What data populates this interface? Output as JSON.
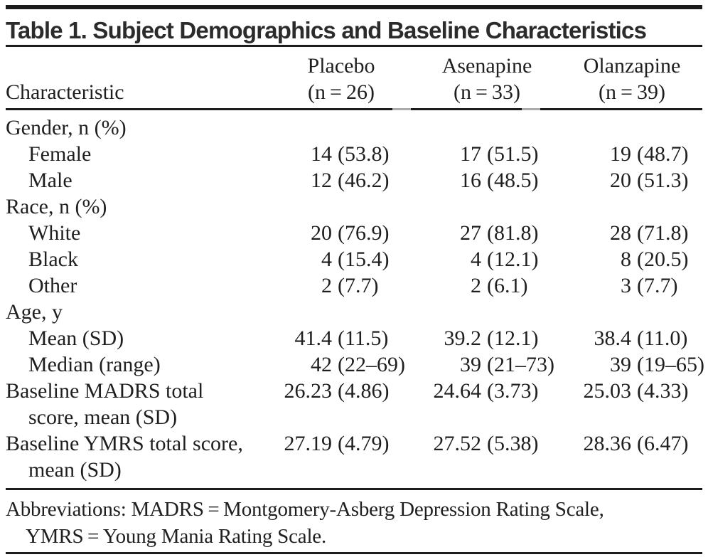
{
  "title": "Table 1. Subject Demographics and Baseline Characteristics",
  "columns": {
    "characteristic_label": "Characteristic",
    "groups": [
      {
        "name": "Placebo",
        "n": "(n = 26)"
      },
      {
        "name": "Asenapine",
        "n": "(n = 33)"
      },
      {
        "name": "Olanzapine",
        "n": "(n = 39)"
      }
    ]
  },
  "rows": [
    {
      "label": "Gender, n (%)",
      "indent": false
    },
    {
      "label": "Female",
      "indent": true,
      "values": [
        {
          "num": "14",
          "paren": "(53.8)"
        },
        {
          "num": "17",
          "paren": "(51.5)"
        },
        {
          "num": "19",
          "paren": "(48.7)"
        }
      ]
    },
    {
      "label": "Male",
      "indent": true,
      "values": [
        {
          "num": "12",
          "paren": "(46.2)"
        },
        {
          "num": "16",
          "paren": "(48.5)"
        },
        {
          "num": "20",
          "paren": "(51.3)"
        }
      ]
    },
    {
      "label": "Race, n (%)",
      "indent": false
    },
    {
      "label": "White",
      "indent": true,
      "values": [
        {
          "num": "20",
          "paren": "(76.9)"
        },
        {
          "num": "27",
          "paren": "(81.8)"
        },
        {
          "num": "28",
          "paren": "(71.8)"
        }
      ]
    },
    {
      "label": "Black",
      "indent": true,
      "values": [
        {
          "num": "4",
          "paren": "(15.4)"
        },
        {
          "num": "4",
          "paren": "(12.1)"
        },
        {
          "num": "8",
          "paren": "(20.5)"
        }
      ]
    },
    {
      "label": "Other",
      "indent": true,
      "values": [
        {
          "num": "2",
          "paren": "(7.7)"
        },
        {
          "num": "2",
          "paren": "(6.1)"
        },
        {
          "num": "3",
          "paren": "(7.7)"
        }
      ]
    },
    {
      "label": "Age, y",
      "indent": false
    },
    {
      "label": "Mean (SD)",
      "indent": true,
      "values": [
        {
          "num": "41.4",
          "paren": "(11.5)"
        },
        {
          "num": "39.2",
          "paren": "(12.1)"
        },
        {
          "num": "38.4",
          "paren": "(11.0)"
        }
      ]
    },
    {
      "label": "Median (range)",
      "indent": true,
      "values": [
        {
          "num": "42",
          "paren": "(22–69)"
        },
        {
          "num": "39",
          "paren": "(21–73)"
        },
        {
          "num": "39",
          "paren": "(19–65)"
        }
      ]
    },
    {
      "label": "Baseline MADRS total",
      "label2": "score, mean (SD)",
      "indent": false,
      "values": [
        {
          "num": "26.23",
          "paren": "(4.86)"
        },
        {
          "num": "24.64",
          "paren": "(3.73)"
        },
        {
          "num": "25.03",
          "paren": "(4.33)"
        }
      ]
    },
    {
      "label": "Baseline YMRS total score,",
      "label2": "mean (SD)",
      "indent": false,
      "values": [
        {
          "num": "27.19",
          "paren": "(4.79)"
        },
        {
          "num": "27.52",
          "paren": "(5.38)"
        },
        {
          "num": "28.36",
          "paren": "(6.47)"
        }
      ]
    }
  ],
  "footnote": {
    "line1": "Abbreviations: MADRS = Montgomery-Asberg Depression Rating Scale,",
    "line2": "YMRS = Young Mania Rating Scale."
  },
  "colors": {
    "rule": "#1c1c1c",
    "text": "#1f1f1f",
    "title_text": "#2b2b2b",
    "background": "#ffffff"
  }
}
